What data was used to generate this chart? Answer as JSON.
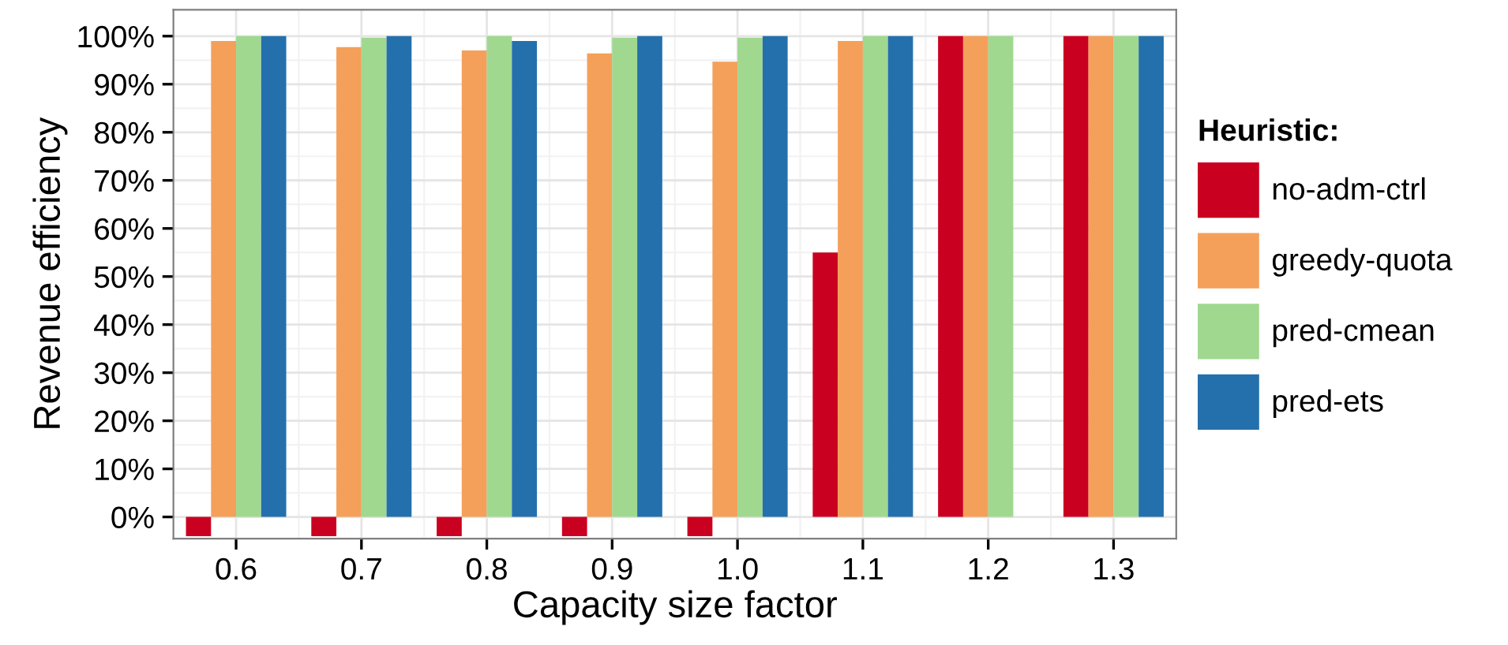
{
  "chart_data": {
    "type": "bar",
    "xlabel": "Capacity size factor",
    "ylabel": "Revenue efficiency",
    "legend_title": "Heuristic:",
    "categories": [
      "0.6",
      "0.7",
      "0.8",
      "0.9",
      "1.0",
      "1.1",
      "1.2",
      "1.3"
    ],
    "series": [
      {
        "name": "no-adm-ctrl",
        "color": "#ca0020",
        "values": [
          -4,
          -4,
          -4,
          -4,
          -4,
          55,
          100,
          100
        ]
      },
      {
        "name": "greedy-quota",
        "color": "#f4a05a",
        "values": [
          99,
          97.7,
          97,
          96.4,
          94.7,
          99,
          100,
          100
        ]
      },
      {
        "name": "pred-cmean",
        "color": "#a0d890",
        "values": [
          100,
          99.7,
          100,
          99.7,
          99.7,
          100,
          100,
          100
        ]
      },
      {
        "name": "pred-ets",
        "color": "#2470ac",
        "values": [
          100,
          100,
          99,
          100,
          100,
          100,
          null,
          100
        ]
      }
    ],
    "ylim": [
      -4.5,
      105.5
    ],
    "yticks": [
      {
        "value": 0,
        "label": "0%"
      },
      {
        "value": 10,
        "label": "10%"
      },
      {
        "value": 20,
        "label": "20%"
      },
      {
        "value": 30,
        "label": "30%"
      },
      {
        "value": 40,
        "label": "40%"
      },
      {
        "value": 50,
        "label": "50%"
      },
      {
        "value": 60,
        "label": "60%"
      },
      {
        "value": 70,
        "label": "70%"
      },
      {
        "value": 80,
        "label": "80%"
      },
      {
        "value": 90,
        "label": "90%"
      },
      {
        "value": 100,
        "label": "100%"
      }
    ],
    "grid": true,
    "legend": "right"
  }
}
